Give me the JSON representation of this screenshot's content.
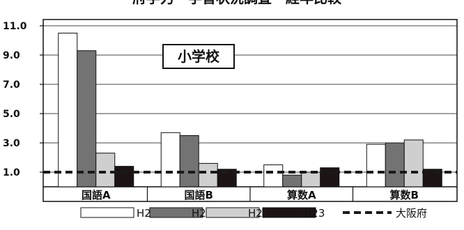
{
  "chart_data": {
    "type": "bar",
    "title_partial": "府学力・学習状況調査　経年比較",
    "inset_label": "小学校",
    "categories": [
      "国語A",
      "国語B",
      "算数A",
      "算数B"
    ],
    "series": [
      {
        "name": "H20",
        "values": [
          10.5,
          3.7,
          1.5,
          2.9
        ]
      },
      {
        "name": "H21",
        "values": [
          9.3,
          3.5,
          0.8,
          3.0
        ]
      },
      {
        "name": "H22",
        "values": [
          2.3,
          1.6,
          1.0,
          3.2
        ]
      },
      {
        "name": "H23",
        "values": [
          1.4,
          1.2,
          1.3,
          1.2
        ]
      }
    ],
    "reference_line": {
      "name": "大阪府",
      "value": 1.0
    },
    "yticks": [
      "11.0",
      "9.0",
      "7.0",
      "5.0",
      "3.0",
      "1.0"
    ],
    "ylim": [
      0,
      11.0
    ],
    "colors": {
      "H20": "#ffffff",
      "H21": "#737373",
      "H22": "#cfcfcf",
      "H23": "#1c1414",
      "reference": "#1a1a1a"
    },
    "grid": true,
    "legend_position": "bottom"
  }
}
